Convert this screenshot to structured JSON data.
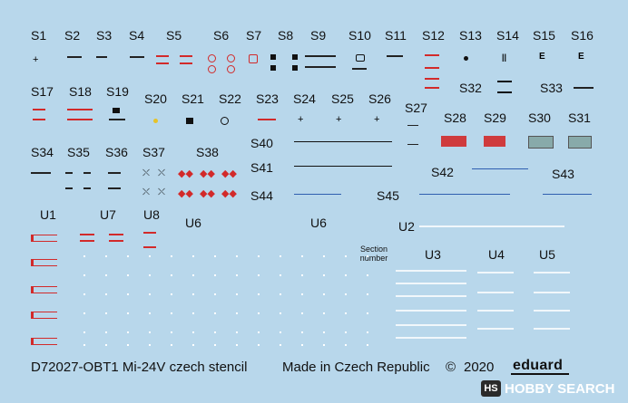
{
  "labels": {
    "S1": "S1",
    "S2": "S2",
    "S3": "S3",
    "S4": "S4",
    "S5": "S5",
    "S6": "S6",
    "S7": "S7",
    "S8": "S8",
    "S9": "S9",
    "S10": "S10",
    "S11": "S11",
    "S12": "S12",
    "S13": "S13",
    "S14": "S14",
    "S15": "S15",
    "S16": "S16",
    "S17": "S17",
    "S18": "S18",
    "S19": "S19",
    "S20": "S20",
    "S21": "S21",
    "S22": "S22",
    "S23": "S23",
    "S24": "S24",
    "S25": "S25",
    "S26": "S26",
    "S27": "S27",
    "S28": "S28",
    "S29": "S29",
    "S30": "S30",
    "S31": "S31",
    "S32": "S32",
    "S33": "S33",
    "S34": "S34",
    "S35": "S35",
    "S36": "S36",
    "S37": "S37",
    "S38": "S38",
    "S40": "S40",
    "S41": "S41",
    "S42": "S42",
    "S43": "S43",
    "S44": "S44",
    "S45": "S45",
    "U1": "U1",
    "U2": "U2",
    "U3": "U3",
    "U4": "U4",
    "U5": "U5",
    "U6a": "U6",
    "U6b": "U6",
    "U7": "U7",
    "U8": "U8"
  },
  "section_number": [
    "Section",
    "number"
  ],
  "footer": {
    "product": "D72027-OBT1 Mi-24V czech stencil",
    "made_in": "Made in Czech Republic",
    "copyright": "©",
    "year": "2020",
    "brand": "eduard"
  },
  "watermark": {
    "text": "HOBBY SEARCH"
  },
  "colors": {
    "background": "#b8d7eb",
    "decal_red": "#d22a2a",
    "decal_blue": "#2f5fb0",
    "decal_white": "#ffffff",
    "decal_black": "#111111"
  }
}
